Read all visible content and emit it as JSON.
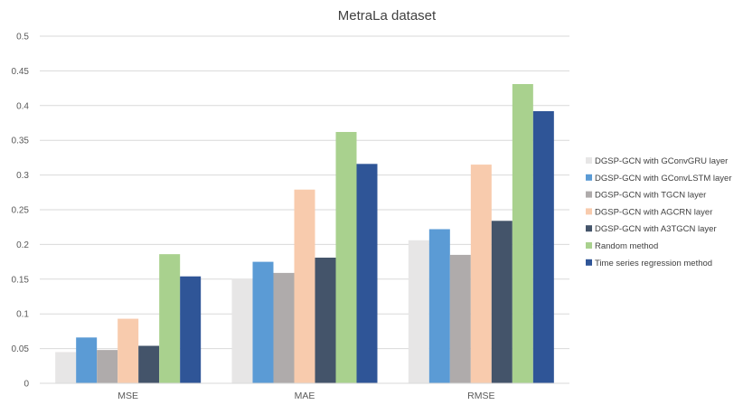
{
  "chart_data": {
    "type": "bar",
    "title": "MetraLa dataset",
    "xlabel": "",
    "ylabel": "",
    "ylim": [
      0,
      0.5
    ],
    "yticks": [
      0,
      0.05,
      0.1,
      0.15,
      0.2,
      0.25,
      0.3,
      0.35,
      0.4,
      0.45,
      0.5
    ],
    "ytick_labels": [
      "0",
      "0.05",
      "0.1",
      "0.15",
      "0.2",
      "0.25",
      "0.3",
      "0.35",
      "0.4",
      "0.45",
      "0.5"
    ],
    "grid": true,
    "legend_position": "right",
    "categories": [
      "MSE",
      "MAE",
      "RMSE"
    ],
    "series": [
      {
        "name": "DGSP-GCN with GConvGRU layer",
        "color": "#e7e6e6",
        "values": [
          0.045,
          0.151,
          0.206
        ]
      },
      {
        "name": "DGSP-GCN with GConvLSTM layer",
        "color": "#5b9bd5",
        "values": [
          0.066,
          0.175,
          0.222
        ]
      },
      {
        "name": "DGSP-GCN with TGCN layer",
        "color": "#afabab",
        "values": [
          0.048,
          0.159,
          0.185
        ]
      },
      {
        "name": "DGSP-GCN with AGCRN layer",
        "color": "#f8cbad",
        "values": [
          0.093,
          0.279,
          0.315
        ]
      },
      {
        "name": "DGSP-GCN with A3TGCN layer",
        "color": "#44546a",
        "values": [
          0.054,
          0.181,
          0.234
        ]
      },
      {
        "name": "Random method",
        "color": "#a9d18e",
        "values": [
          0.186,
          0.362,
          0.431
        ]
      },
      {
        "name": "Time series regression method",
        "color": "#2f5597",
        "values": [
          0.154,
          0.316,
          0.392
        ]
      }
    ]
  }
}
